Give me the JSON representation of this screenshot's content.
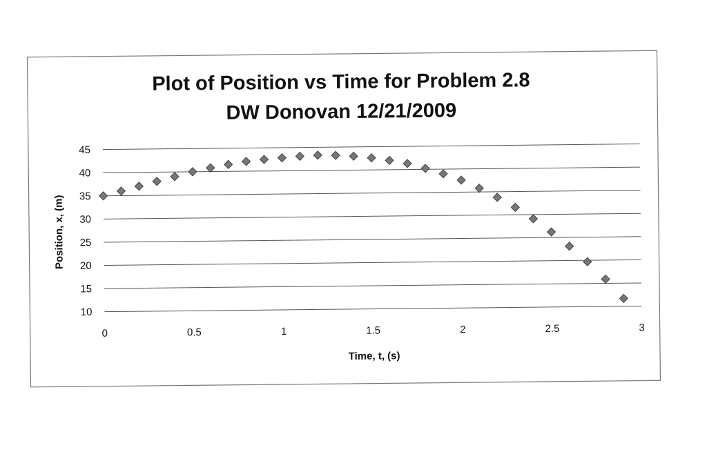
{
  "colors": {
    "background": "#ffffff",
    "frame": "#777777",
    "gridline": "#555555",
    "marker": "#777777",
    "marker_edge": "#444444",
    "text": "#111111"
  },
  "chart_data": {
    "type": "scatter",
    "title_line1": "Plot of Position vs Time for Problem 2.8",
    "title_line2": "DW Donovan 12/21/2009",
    "xlabel": "Time, t, (s)",
    "ylabel": "Position, x, (m)",
    "xlim": [
      0,
      3
    ],
    "ylim": [
      10,
      45
    ],
    "xticks": [
      "0",
      "0.5",
      "1",
      "1.5",
      "2",
      "2.5",
      "3"
    ],
    "yticks": [
      "45",
      "40",
      "35",
      "30",
      "25",
      "20",
      "15",
      "10"
    ],
    "grid": "horizontal",
    "legend": "none",
    "marker": "diamond",
    "x": [
      0,
      0.1,
      0.2,
      0.3,
      0.4,
      0.5,
      0.6,
      0.7,
      0.8,
      0.9,
      1.0,
      1.1,
      1.2,
      1.3,
      1.4,
      1.5,
      1.6,
      1.7,
      1.8,
      1.9,
      2.0,
      2.1,
      2.2,
      2.3,
      2.4,
      2.5,
      2.6,
      2.7,
      2.8,
      2.9
    ],
    "y": [
      35,
      36,
      37,
      38,
      39,
      40,
      40.8,
      41.5,
      42.1,
      42.5,
      42.8,
      43.1,
      43.3,
      43.2,
      43.0,
      42.6,
      42.0,
      41.3,
      40.2,
      39.0,
      37.6,
      35.8,
      33.8,
      31.6,
      29.1,
      26.2,
      23.1,
      19.7,
      15.9,
      11.7
    ]
  }
}
